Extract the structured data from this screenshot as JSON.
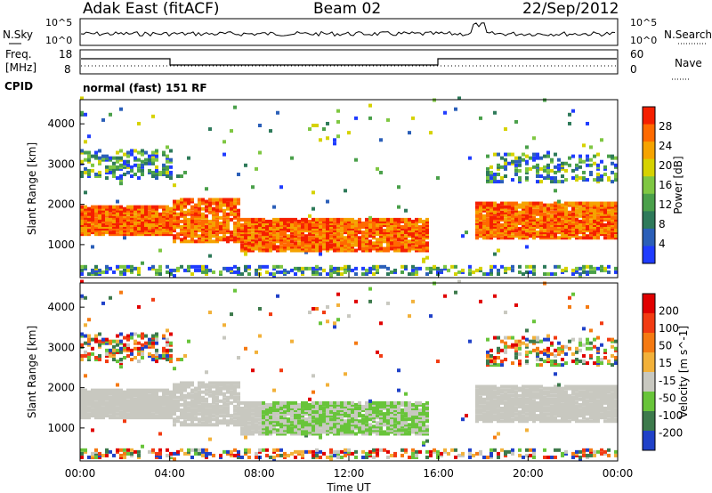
{
  "header": {
    "station": "Adak East (fitACF)",
    "beam": "Beam 02",
    "date": "22/Sep/2012"
  },
  "top_panels": {
    "nsky_label": "N.Sky",
    "nsky_ticks": [
      "10^5",
      "10^0"
    ],
    "nsearch_label": "N.Search",
    "nsearch_ticks": [
      "10^5",
      "10^0"
    ],
    "freq_label_line1": "Freq.",
    "freq_label_line2": "[MHz]",
    "freq_ticks": [
      "18",
      "8"
    ],
    "nave_label": "Nave",
    "nave_ticks": [
      "60",
      "0"
    ],
    "cpid_label": "CPID",
    "cpid_text": "normal (fast) 151 RF"
  },
  "chart_data": [
    {
      "type": "heatmap",
      "name": "power",
      "ylabel": "Slant Range [km]",
      "xlabel": "",
      "x_ticks": [
        "00:00",
        "04:00",
        "08:00",
        "12:00",
        "16:00",
        "20:00",
        "00:00"
      ],
      "y_ticks": [
        1000,
        2000,
        3000,
        4000
      ],
      "ylim": [
        180,
        4600
      ],
      "xlim_hours": [
        0,
        24
      ],
      "colorbar": {
        "label": "Power [dB]",
        "ticks": [
          4,
          8,
          12,
          16,
          20,
          24,
          28
        ],
        "range": [
          0,
          32
        ],
        "colors": [
          "#1f3cff",
          "#2b5fb8",
          "#2e7a5a",
          "#4aa04a",
          "#7fc742",
          "#d6d200",
          "#f5a300",
          "#ff6a00",
          "#f51f00"
        ]
      }
    },
    {
      "type": "heatmap",
      "name": "velocity",
      "ylabel": "Slant Range [km]",
      "xlabel": "Time UT",
      "x_ticks": [
        "00:00",
        "04:00",
        "08:00",
        "12:00",
        "16:00",
        "20:00",
        "00:00"
      ],
      "y_ticks": [
        1000,
        2000,
        3000,
        4000
      ],
      "ylim": [
        180,
        4600
      ],
      "xlim_hours": [
        0,
        24
      ],
      "colorbar": {
        "label": "Velocity [m s^-1]",
        "ticks": [
          200,
          100,
          50,
          15,
          -15,
          -50,
          -100,
          -200
        ],
        "colors": [
          "#2041c8",
          "#3d7a4c",
          "#68c43a",
          "#c8c8c0",
          "#f2b13a",
          "#f57a12",
          "#f23b12",
          "#e00000"
        ]
      },
      "ground_scatter_color": "#c8c8c0"
    }
  ]
}
